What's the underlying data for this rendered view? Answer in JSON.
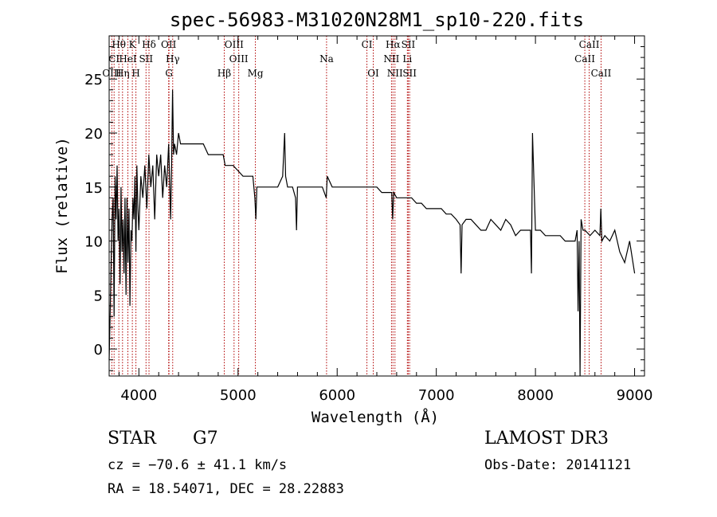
{
  "chart_data": {
    "type": "line",
    "title": "spec-56983-M31020N28M1_sp10-220.fits",
    "xlabel": "Wavelength (Å)",
    "ylabel": "Flux (relative)",
    "xlim": [
      3700,
      9100
    ],
    "ylim": [
      -2.5,
      29
    ],
    "xticks": [
      4000,
      5000,
      6000,
      7000,
      8000,
      9000
    ],
    "xtick_labels": [
      "4000",
      "5000",
      "6000",
      "7000",
      "8000",
      "9000"
    ],
    "yticks": [
      0,
      5,
      10,
      15,
      20,
      25
    ],
    "ytick_labels": [
      "0",
      "5",
      "10",
      "15",
      "20",
      "25"
    ],
    "series": [
      {
        "name": "flux",
        "x": [
          3700,
          3710,
          3720,
          3730,
          3740,
          3750,
          3760,
          3770,
          3780,
          3790,
          3800,
          3810,
          3820,
          3830,
          3840,
          3850,
          3860,
          3870,
          3880,
          3890,
          3900,
          3910,
          3920,
          3930,
          3940,
          3950,
          3960,
          3970,
          3980,
          3990,
          4000,
          4020,
          4040,
          4060,
          4080,
          4100,
          4120,
          4140,
          4160,
          4180,
          4200,
          4220,
          4240,
          4260,
          4280,
          4300,
          4320,
          4330,
          4340,
          4350,
          4360,
          4380,
          4400,
          4420,
          4440,
          4460,
          4480,
          4500,
          4550,
          4600,
          4650,
          4700,
          4750,
          4800,
          4850,
          4860,
          4870,
          4900,
          4950,
          5000,
          5050,
          5100,
          5150,
          5170,
          5180,
          5190,
          5200,
          5250,
          5300,
          5350,
          5400,
          5450,
          5470,
          5480,
          5500,
          5550,
          5580,
          5590,
          5600,
          5650,
          5700,
          5750,
          5800,
          5850,
          5890,
          5900,
          5950,
          6000,
          6050,
          6100,
          6150,
          6200,
          6250,
          6300,
          6350,
          6400,
          6450,
          6500,
          6550,
          6560,
          6570,
          6600,
          6650,
          6700,
          6750,
          6800,
          6850,
          6900,
          6950,
          7000,
          7050,
          7100,
          7150,
          7200,
          7240,
          7250,
          7260,
          7300,
          7350,
          7400,
          7450,
          7500,
          7550,
          7600,
          7650,
          7700,
          7750,
          7800,
          7850,
          7900,
          7950,
          7960,
          7970,
          8000,
          8050,
          8100,
          8150,
          8200,
          8250,
          8300,
          8350,
          8400,
          8420,
          8430,
          8440,
          8450,
          8460,
          8480,
          8500,
          8550,
          8600,
          8650,
          8660,
          8670,
          8700,
          8750,
          8800,
          8850,
          8900,
          8950,
          9000
        ],
        "y": [
          -1,
          3,
          8,
          12,
          14,
          3,
          16,
          12,
          17,
          10,
          13,
          6,
          15,
          9,
          12,
          7,
          14,
          5,
          14,
          8,
          13,
          4,
          11,
          10,
          14,
          12,
          16,
          9,
          17,
          13,
          11,
          16,
          14,
          17,
          13,
          18,
          15,
          17,
          12,
          18,
          16,
          18,
          14,
          17,
          15,
          19,
          12,
          17,
          24,
          18,
          19,
          18,
          20,
          19,
          19,
          19,
          19,
          19,
          19,
          19,
          19,
          18,
          18,
          18,
          18,
          17.5,
          17,
          17,
          17,
          16.5,
          16,
          16,
          16,
          14,
          12,
          15,
          15,
          15,
          15,
          15,
          15,
          16,
          20,
          16,
          15,
          15,
          14,
          11,
          15,
          15,
          15,
          15,
          15,
          15,
          14,
          16,
          15,
          15,
          15,
          15,
          15,
          15,
          15,
          15,
          15,
          15,
          14.5,
          14.5,
          14.5,
          12,
          14.5,
          14,
          14,
          14,
          14,
          13.5,
          13.5,
          13,
          13,
          13,
          13,
          12.5,
          12.5,
          12,
          11.5,
          7,
          11.5,
          12,
          12,
          11.5,
          11,
          11,
          12,
          11.5,
          11,
          12,
          11.5,
          10.5,
          11,
          11,
          11,
          7,
          20,
          11,
          11,
          10.5,
          10.5,
          10.5,
          10.5,
          10,
          10,
          10,
          11,
          3.5,
          10,
          -3,
          12,
          11,
          11,
          10.5,
          11,
          10.5,
          13,
          10,
          10.5,
          10,
          11,
          9,
          8,
          10,
          7
        ]
      }
    ],
    "lines": [
      {
        "name": "Hθ",
        "wave": 3798,
        "row": 0
      },
      {
        "name": "K",
        "wave": 3934,
        "row": 0
      },
      {
        "name": "Hδ",
        "wave": 4102,
        "row": 0
      },
      {
        "name": "OII",
        "wave": 4300,
        "row": 0
      },
      {
        "name": "OIII",
        "wave": 4960,
        "row": 0
      },
      {
        "name": "CI",
        "wave": 6300,
        "row": 0
      },
      {
        "name": "Hα",
        "wave": 6563,
        "row": 0
      },
      {
        "name": "SII",
        "wave": 6717,
        "row": 0
      },
      {
        "name": "CaII",
        "wave": 8542,
        "row": 0
      },
      {
        "name": "CI",
        "wave": 3750,
        "row": 1
      },
      {
        "name": "HeI",
        "wave": 3889,
        "row": 1
      },
      {
        "name": "SII",
        "wave": 4072,
        "row": 1
      },
      {
        "name": "Hγ",
        "wave": 4341,
        "row": 1
      },
      {
        "name": "OIII",
        "wave": 5007,
        "row": 1
      },
      {
        "name": "Na",
        "wave": 5893,
        "row": 1
      },
      {
        "name": "NII",
        "wave": 6548,
        "row": 1
      },
      {
        "name": "Li",
        "wave": 6708,
        "row": 1
      },
      {
        "name": "CaII",
        "wave": 8498,
        "row": 1
      },
      {
        "name": "OIII",
        "wave": 3727,
        "row": 2
      },
      {
        "name": "Hη",
        "wave": 3835,
        "row": 2
      },
      {
        "name": "H",
        "wave": 3970,
        "row": 2
      },
      {
        "name": "G",
        "wave": 4304,
        "row": 2
      },
      {
        "name": "Hβ",
        "wave": 4861,
        "row": 2
      },
      {
        "name": "Mg",
        "wave": 5175,
        "row": 2
      },
      {
        "name": "OI",
        "wave": 6364,
        "row": 2
      },
      {
        "name": "NII",
        "wave": 6583,
        "row": 2
      },
      {
        "name": "SII",
        "wave": 6731,
        "row": 2
      },
      {
        "name": "CaII",
        "wave": 8662,
        "row": 2
      }
    ]
  },
  "info": {
    "class": "STAR",
    "subclass": "G7",
    "survey": "LAMOST DR3",
    "cz": "cz = −70.6 ± 41.1 km/s",
    "obsdate": "Obs-Date: 20141121",
    "radec": "RA =  18.54071, DEC =  28.22883"
  },
  "colors": {
    "line": "#000000",
    "marker": "#b00000"
  }
}
